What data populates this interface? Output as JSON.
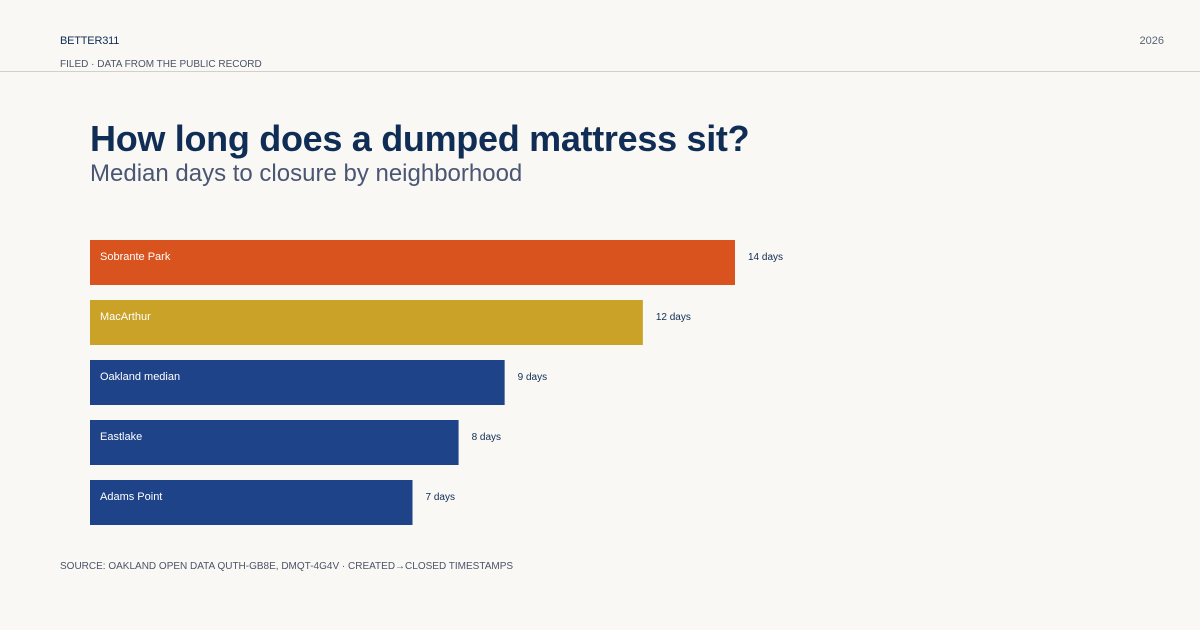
{
  "header": {
    "brand": "BETTER311",
    "year": "2026",
    "tagline": "FILED · DATA FROM THE PUBLIC RECORD"
  },
  "chart_data": {
    "type": "bar",
    "orientation": "horizontal",
    "title": "How long does a dumped mattress sit?",
    "subtitle": "Median days to closure by neighborhood",
    "categories": [
      "Sobrante Park",
      "MacArthur",
      "Oakland median",
      "Eastlake",
      "Adams Point"
    ],
    "values": [
      14,
      12,
      9,
      8,
      7
    ],
    "value_labels": [
      "14 days",
      "12 days",
      "9 days",
      "8 days",
      "7 days"
    ],
    "colors": [
      "#d9531e",
      "#c9a227",
      "#1f4388",
      "#1f4388",
      "#1f4388"
    ],
    "xlim": [
      0,
      14
    ],
    "grid": false
  },
  "footer": {
    "source": "SOURCE: OAKLAND OPEN DATA QUTH-GB8E, DMQT-4G4V · CREATED→CLOSED TIMESTAMPS"
  }
}
